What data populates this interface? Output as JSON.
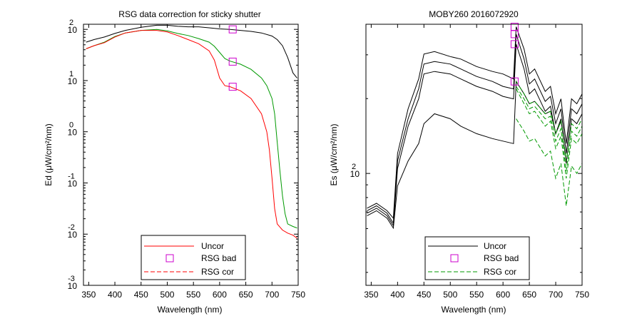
{
  "chart_data": [
    {
      "type": "line",
      "title": "RSG data correction for sticky shutter",
      "xlabel": "Wavelength (nm)",
      "ylabel": "Ed (μW/cm²/nm)",
      "xlim": [
        340,
        750
      ],
      "y_scale": "log",
      "ylim_log10": [
        -3,
        2.1
      ],
      "x_ticks": [
        350,
        400,
        450,
        500,
        550,
        600,
        650,
        700,
        750
      ],
      "y_ticks": [
        {
          "base": "10",
          "exp": "2",
          "log10": 2
        },
        {
          "base": "10",
          "exp": "1",
          "log10": 1
        },
        {
          "base": "10",
          "exp": "0",
          "log10": 0
        },
        {
          "base": "10",
          "exp": "-1",
          "log10": -1
        },
        {
          "base": "10",
          "exp": "-2",
          "log10": -2
        },
        {
          "base": "10",
          "exp": "-3",
          "log10": -3
        }
      ],
      "legend": {
        "position": "bottom-center",
        "entries": [
          {
            "label": "Uncor",
            "style": "solid-line",
            "color": "#ff0000"
          },
          {
            "label": "RSG bad",
            "style": "square-marker",
            "color": "#cc00cc"
          },
          {
            "label": "RSG cor",
            "style": "dashed-line",
            "color": "#ff0000"
          }
        ]
      },
      "series": [
        {
          "role": "uncor-black",
          "color": "#000000",
          "x": [
            345,
            360,
            380,
            400,
            420,
            450,
            480,
            500,
            520,
            540,
            560,
            580,
            600,
            620,
            640,
            660,
            680,
            700,
            710,
            720,
            730,
            740,
            748
          ],
          "log10_y": [
            1.75,
            1.8,
            1.85,
            1.92,
            1.98,
            2.04,
            2.08,
            2.08,
            2.06,
            2.05,
            2.05,
            2.03,
            2.01,
            2.0,
            1.98,
            1.96,
            1.93,
            1.87,
            1.8,
            1.68,
            1.45,
            1.15,
            1.05
          ]
        },
        {
          "role": "uncor-green",
          "color": "#009900",
          "x": [
            345,
            360,
            380,
            400,
            420,
            450,
            480,
            500,
            520,
            540,
            560,
            580,
            590,
            600,
            610,
            620,
            640,
            660,
            680,
            690,
            700,
            705,
            710,
            715,
            720,
            725,
            730,
            740,
            748
          ],
          "log10_y": [
            1.62,
            1.68,
            1.75,
            1.86,
            1.93,
            1.98,
            2.0,
            1.97,
            1.92,
            1.88,
            1.82,
            1.75,
            1.67,
            1.55,
            1.43,
            1.38,
            1.32,
            1.22,
            1.05,
            0.9,
            0.65,
            0.35,
            -0.2,
            -0.75,
            -1.25,
            -1.6,
            -1.8,
            -1.85,
            -1.88
          ]
        },
        {
          "role": "uncor-red",
          "color": "#ff0000",
          "x": [
            345,
            360,
            380,
            400,
            420,
            450,
            480,
            500,
            520,
            540,
            560,
            580,
            590,
            600,
            610,
            620,
            640,
            660,
            680,
            690,
            695,
            700,
            705,
            710,
            720,
            730,
            740,
            748
          ],
          "log10_y": [
            1.62,
            1.68,
            1.74,
            1.85,
            1.93,
            1.98,
            1.98,
            1.95,
            1.88,
            1.8,
            1.72,
            1.58,
            1.4,
            1.05,
            0.9,
            0.88,
            0.8,
            0.65,
            0.35,
            0.0,
            -0.35,
            -0.9,
            -1.5,
            -1.8,
            -1.92,
            -1.98,
            -2.02,
            -2.08
          ]
        }
      ],
      "rsg_bad_points": [
        {
          "x": 625,
          "log10_y": 2.0
        },
        {
          "x": 625,
          "log10_y": 1.37
        },
        {
          "x": 625,
          "log10_y": 0.88
        }
      ]
    },
    {
      "type": "line",
      "title": "MOBY260  2016072920",
      "xlabel": "Wavelength (nm)",
      "ylabel": "Es (μW/cm²/nm)",
      "xlim": [
        340,
        750
      ],
      "y_scale": "log",
      "ylim_log10": [
        1.55,
        2.6
      ],
      "x_ticks": [
        350,
        400,
        450,
        500,
        550,
        600,
        650,
        700,
        750
      ],
      "y_ticks": [
        {
          "base": "10",
          "exp": "2",
          "log10": 2
        }
      ],
      "legend": {
        "position": "bottom-center",
        "entries": [
          {
            "label": "Uncor",
            "style": "solid-line",
            "color": "#000000"
          },
          {
            "label": "RSG bad",
            "style": "square-marker",
            "color": "#cc00cc"
          },
          {
            "label": "RSG cor",
            "style": "dashed-line",
            "color": "#009900"
          }
        ]
      },
      "series": [
        {
          "role": "uncor-top",
          "color": "#000000",
          "x": [
            342,
            360,
            380,
            392,
            400,
            420,
            440,
            450,
            470,
            500,
            520,
            550,
            580,
            600,
            620,
            625,
            640,
            650,
            660,
            680,
            690,
            700,
            710,
            720,
            730,
            740,
            750
          ],
          "log10_y": [
            1.86,
            1.88,
            1.85,
            1.82,
            2.08,
            2.26,
            2.38,
            2.48,
            2.49,
            2.47,
            2.46,
            2.43,
            2.41,
            2.4,
            2.38,
            2.59,
            2.5,
            2.4,
            2.42,
            2.33,
            2.35,
            2.24,
            2.3,
            2.12,
            2.3,
            2.28,
            2.32
          ]
        },
        {
          "role": "uncor-mid",
          "color": "#000000",
          "x": [
            342,
            360,
            380,
            392,
            400,
            420,
            440,
            450,
            470,
            500,
            520,
            550,
            580,
            600,
            620,
            625,
            640,
            650,
            660,
            680,
            690,
            700,
            710,
            720,
            730,
            740,
            750
          ],
          "log10_y": [
            1.85,
            1.87,
            1.84,
            1.8,
            2.05,
            2.22,
            2.34,
            2.44,
            2.45,
            2.44,
            2.42,
            2.39,
            2.37,
            2.35,
            2.34,
            2.56,
            2.46,
            2.36,
            2.38,
            2.29,
            2.31,
            2.2,
            2.26,
            2.08,
            2.26,
            2.24,
            2.28
          ]
        },
        {
          "role": "uncor-low",
          "color": "#000000",
          "x": [
            342,
            360,
            380,
            392,
            400,
            420,
            440,
            450,
            470,
            500,
            520,
            550,
            580,
            600,
            620,
            625,
            640,
            650,
            660,
            680,
            690,
            700,
            710,
            720,
            730,
            740,
            750
          ],
          "log10_y": [
            1.84,
            1.86,
            1.83,
            1.79,
            2.02,
            2.19,
            2.3,
            2.4,
            2.41,
            2.4,
            2.38,
            2.35,
            2.33,
            2.31,
            2.3,
            2.52,
            2.42,
            2.32,
            2.34,
            2.25,
            2.27,
            2.16,
            2.22,
            2.04,
            2.22,
            2.2,
            2.24
          ]
        },
        {
          "role": "uncor-bottom",
          "color": "#000000",
          "x": [
            342,
            360,
            380,
            392,
            400,
            420,
            440,
            450,
            470,
            500,
            520,
            550,
            580,
            600,
            620,
            625,
            640,
            650,
            660,
            680,
            690,
            700,
            710
          ],
          "log10_y": [
            1.83,
            1.85,
            1.82,
            1.78,
            1.95,
            2.05,
            2.12,
            2.2,
            2.24,
            2.22,
            2.19,
            2.16,
            2.14,
            2.13,
            2.12,
            2.37,
            2.32,
            2.28,
            2.29,
            2.24,
            2.25,
            2.16,
            2.21
          ]
        },
        {
          "role": "rsg-cor-1",
          "color": "#009900",
          "dashed": true,
          "x": [
            625,
            640,
            650,
            660,
            680,
            690,
            700,
            710,
            720,
            730,
            740,
            750
          ],
          "log10_y": [
            2.37,
            2.32,
            2.28,
            2.29,
            2.24,
            2.25,
            2.16,
            2.21,
            2.05,
            2.2,
            2.18,
            2.22
          ]
        },
        {
          "role": "rsg-cor-2",
          "color": "#009900",
          "dashed": true,
          "x": [
            625,
            640,
            650,
            660,
            680,
            690,
            700,
            710,
            720,
            730,
            740,
            750
          ],
          "log10_y": [
            2.35,
            2.3,
            2.26,
            2.27,
            2.22,
            2.23,
            2.13,
            2.18,
            2.01,
            2.17,
            2.15,
            2.19
          ]
        },
        {
          "role": "rsg-cor-3",
          "color": "#009900",
          "dashed": true,
          "x": [
            625,
            640,
            650,
            660,
            680,
            690,
            700,
            710,
            720,
            730,
            740,
            750
          ],
          "log10_y": [
            2.34,
            2.28,
            2.24,
            2.25,
            2.19,
            2.21,
            2.1,
            2.15,
            1.98,
            2.14,
            2.12,
            2.16
          ]
        },
        {
          "role": "rsg-cor-4",
          "color": "#009900",
          "dashed": true,
          "x": [
            625,
            640,
            650,
            660,
            680,
            690,
            700,
            710,
            720,
            730,
            740,
            750
          ],
          "log10_y": [
            2.22,
            2.17,
            2.13,
            2.14,
            2.07,
            2.09,
            1.98,
            2.04,
            1.87,
            2.03,
            2.0,
            2.04
          ]
        }
      ],
      "rsg_bad_points": [
        {
          "x": 622,
          "log10_y": 2.59
        },
        {
          "x": 622,
          "log10_y": 2.56
        },
        {
          "x": 622,
          "log10_y": 2.52
        },
        {
          "x": 622,
          "log10_y": 2.37
        }
      ]
    }
  ]
}
